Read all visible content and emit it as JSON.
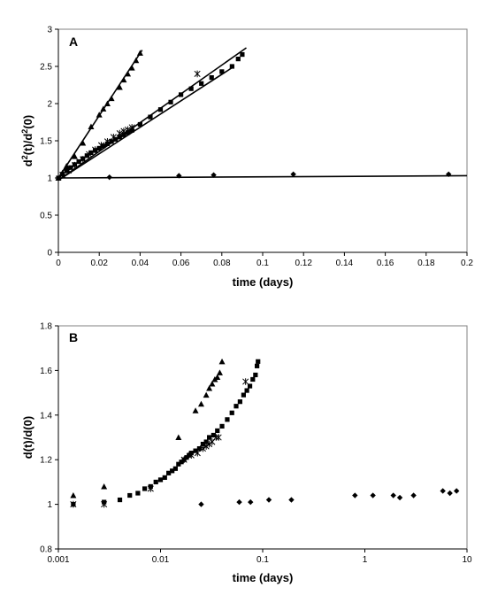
{
  "chart_data": [
    {
      "panel": "A",
      "type": "scatter",
      "xlabel": "time (days)",
      "ylabel_main": "d",
      "ylabel_sup1": "2",
      "ylabel_mid": "(t)/d",
      "ylabel_sup2": "2",
      "ylabel_end": "(0)",
      "xlim": [
        0,
        0.2
      ],
      "ylim": [
        0,
        3
      ],
      "x_ticks": [
        "0",
        "0.02",
        "0.04",
        "0.06",
        "0.08",
        "0.1",
        "0.12",
        "0.14",
        "0.16",
        "0.18",
        "0.2"
      ],
      "y_ticks": [
        "0",
        "0.5",
        "1",
        "1.5",
        "2",
        "2.5",
        "3"
      ],
      "grid": false,
      "series": [
        {
          "marker": "triangle",
          "x": [
            0,
            0.002,
            0.004,
            0.008,
            0.012,
            0.016,
            0.02,
            0.022,
            0.024,
            0.026,
            0.03,
            0.032,
            0.034,
            0.036,
            0.038,
            0.04
          ],
          "y": [
            1.0,
            1.07,
            1.16,
            1.29,
            1.47,
            1.69,
            1.85,
            1.93,
            2.0,
            2.07,
            2.22,
            2.32,
            2.4,
            2.48,
            2.58,
            2.68
          ]
        },
        {
          "marker": "square",
          "x": [
            0,
            0.002,
            0.004,
            0.006,
            0.008,
            0.01,
            0.012,
            0.014,
            0.016,
            0.018,
            0.02,
            0.022,
            0.024,
            0.026,
            0.028,
            0.03,
            0.032,
            0.034,
            0.036,
            0.04,
            0.045,
            0.05,
            0.055,
            0.06,
            0.065,
            0.07,
            0.075,
            0.08,
            0.085,
            0.088,
            0.09
          ],
          "y": [
            1.0,
            1.05,
            1.1,
            1.14,
            1.18,
            1.22,
            1.26,
            1.3,
            1.34,
            1.37,
            1.4,
            1.43,
            1.46,
            1.49,
            1.52,
            1.55,
            1.58,
            1.61,
            1.64,
            1.72,
            1.82,
            1.92,
            2.02,
            2.12,
            2.2,
            2.27,
            2.35,
            2.43,
            2.5,
            2.6,
            2.66
          ]
        },
        {
          "marker": "star",
          "x": [
            0.002,
            0.005,
            0.008,
            0.012,
            0.015,
            0.018,
            0.021,
            0.024,
            0.027,
            0.03,
            0.032,
            0.034,
            0.036,
            0.068
          ],
          "y": [
            1.04,
            1.1,
            1.17,
            1.25,
            1.32,
            1.38,
            1.44,
            1.49,
            1.55,
            1.6,
            1.63,
            1.65,
            1.68,
            2.4
          ]
        },
        {
          "marker": "diamond",
          "x": [
            0.025,
            0.059,
            0.076,
            0.115,
            0.191
          ],
          "y": [
            1.01,
            1.03,
            1.04,
            1.05,
            1.05
          ]
        }
      ],
      "fit_lines": [
        {
          "x": [
            0,
            0.041
          ],
          "y": [
            1.0,
            2.72
          ]
        },
        {
          "x": [
            0,
            0.092
          ],
          "y": [
            0.97,
            2.75
          ]
        },
        {
          "x": [
            0,
            0.086
          ],
          "y": [
            0.97,
            2.5
          ]
        },
        {
          "x": [
            0,
            0.2
          ],
          "y": [
            1.0,
            1.03
          ]
        }
      ]
    },
    {
      "panel": "B",
      "type": "scatter",
      "xlabel": "time (days)",
      "ylabel": "d(t)/d(0)",
      "x_scale": "log",
      "xlim": [
        0.001,
        10
      ],
      "ylim": [
        0.8,
        1.8
      ],
      "x_ticks": [
        "0.001",
        "0.01",
        "0.1",
        "1",
        "10"
      ],
      "y_ticks": [
        "0.8",
        "1",
        "1.2",
        "1.4",
        "1.6",
        "1.8"
      ],
      "grid": false,
      "series": [
        {
          "marker": "triangle",
          "x": [
            0.0014,
            0.0028,
            0.015,
            0.022,
            0.025,
            0.028,
            0.03,
            0.032,
            0.034,
            0.036,
            0.038,
            0.04
          ],
          "y": [
            1.04,
            1.08,
            1.3,
            1.42,
            1.45,
            1.49,
            1.52,
            1.54,
            1.56,
            1.57,
            1.59,
            1.64
          ]
        },
        {
          "marker": "square",
          "x": [
            0.0014,
            0.0028,
            0.004,
            0.005,
            0.006,
            0.007,
            0.008,
            0.009,
            0.01,
            0.011,
            0.012,
            0.013,
            0.014,
            0.015,
            0.016,
            0.017,
            0.018,
            0.019,
            0.02,
            0.022,
            0.024,
            0.026,
            0.028,
            0.03,
            0.033,
            0.036,
            0.04,
            0.045,
            0.05,
            0.055,
            0.06,
            0.065,
            0.07,
            0.075,
            0.08,
            0.085,
            0.088,
            0.09
          ],
          "y": [
            1.0,
            1.01,
            1.02,
            1.04,
            1.05,
            1.07,
            1.08,
            1.1,
            1.11,
            1.12,
            1.14,
            1.15,
            1.16,
            1.18,
            1.19,
            1.2,
            1.21,
            1.22,
            1.23,
            1.24,
            1.25,
            1.27,
            1.28,
            1.3,
            1.31,
            1.33,
            1.35,
            1.38,
            1.41,
            1.44,
            1.46,
            1.49,
            1.51,
            1.53,
            1.56,
            1.58,
            1.62,
            1.64
          ]
        },
        {
          "marker": "star",
          "x": [
            0.0014,
            0.0028,
            0.008,
            0.017,
            0.02,
            0.023,
            0.026,
            0.028,
            0.03,
            0.032,
            0.035,
            0.037,
            0.068
          ],
          "y": [
            1.0,
            1.0,
            1.07,
            1.2,
            1.22,
            1.23,
            1.25,
            1.26,
            1.27,
            1.28,
            1.3,
            1.3,
            1.55
          ]
        },
        {
          "marker": "diamond",
          "x": [
            0.025,
            0.059,
            0.076,
            0.115,
            0.191,
            0.8,
            1.2,
            1.9,
            2.2,
            3.0,
            5.8,
            6.8,
            7.9
          ],
          "y": [
            1.0,
            1.01,
            1.01,
            1.02,
            1.02,
            1.04,
            1.04,
            1.04,
            1.03,
            1.04,
            1.06,
            1.05,
            1.06
          ]
        }
      ]
    }
  ]
}
